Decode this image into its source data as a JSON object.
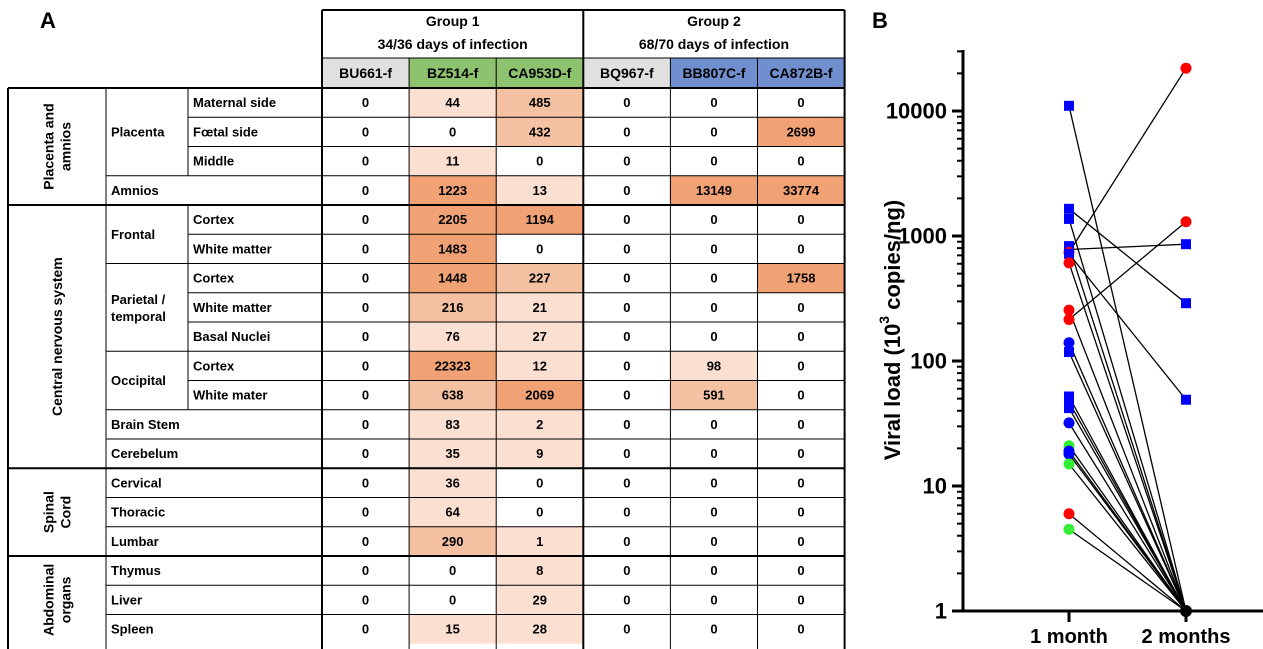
{
  "panel_a_label": "A",
  "panel_b_label": "B",
  "groups": [
    {
      "title": "Group 1",
      "subtitle": "34/36 days of infection"
    },
    {
      "title": "Group 2",
      "subtitle": "68/70 days of infection"
    }
  ],
  "samples": [
    {
      "name": "BU661-f",
      "color": "#e0e0e0"
    },
    {
      "name": "BZ514-f",
      "color": "#8dc26f"
    },
    {
      "name": "CA953D-f",
      "color": "#8dc26f"
    },
    {
      "name": "BQ967-f",
      "color": "#e0e0e0"
    },
    {
      "name": "BB807C-f",
      "color": "#6f8fcf"
    },
    {
      "name": "CA872B-f",
      "color": "#6f8fcf"
    }
  ],
  "heat_colors": {
    "low": "#fbe0d2",
    "mid": "#f5c1a3",
    "high": "#f0a274"
  },
  "sections": [
    {
      "name": "Placenta and amnios",
      "subgroups": [
        {
          "name": "Placenta",
          "rows": [
            {
              "tissue": "Maternal side",
              "values": [
                "0",
                "44",
                "485",
                "0",
                "0",
                "0"
              ]
            },
            {
              "tissue": "Fœtal side",
              "values": [
                "0",
                "0",
                "432",
                "0",
                "0",
                "2699"
              ]
            },
            {
              "tissue": "Middle",
              "values": [
                "0",
                "11",
                "0",
                "0",
                "0",
                "0"
              ]
            }
          ]
        },
        {
          "name": "Amnios",
          "rows": [
            {
              "tissue": "",
              "values": [
                "0",
                "1223",
                "13",
                "0",
                "13149",
                "33774"
              ]
            }
          ]
        }
      ]
    },
    {
      "name": "Central nervous system",
      "subgroups": [
        {
          "name": "Frontal",
          "rows": [
            {
              "tissue": "Cortex",
              "values": [
                "0",
                "2205",
                "1194",
                "0",
                "0",
                "0"
              ]
            },
            {
              "tissue": "White matter",
              "values": [
                "0",
                "1483",
                "0",
                "0",
                "0",
                "0"
              ]
            }
          ]
        },
        {
          "name": "Parietal / temporal",
          "rows": [
            {
              "tissue": "Cortex",
              "values": [
                "0",
                "1448",
                "227",
                "0",
                "0",
                "1758"
              ]
            },
            {
              "tissue": "White matter",
              "values": [
                "0",
                "216",
                "21",
                "0",
                "0",
                "0"
              ]
            },
            {
              "tissue": "Basal Nuclei",
              "values": [
                "0",
                "76",
                "27",
                "0",
                "0",
                "0"
              ]
            }
          ]
        },
        {
          "name": "Occipital",
          "rows": [
            {
              "tissue": "Cortex",
              "values": [
                "0",
                "22323",
                "12",
                "0",
                "98",
                "0"
              ]
            },
            {
              "tissue": "White mater",
              "values": [
                "0",
                "638",
                "2069",
                "0",
                "591",
                "0"
              ]
            }
          ]
        },
        {
          "name": "Brain Stem",
          "rows": [
            {
              "tissue": "",
              "values": [
                "0",
                "83",
                "2",
                "0",
                "0",
                "0"
              ]
            }
          ]
        },
        {
          "name": "Cerebelum",
          "rows": [
            {
              "tissue": "",
              "values": [
                "0",
                "35",
                "9",
                "0",
                "0",
                "0"
              ]
            }
          ]
        }
      ]
    },
    {
      "name": "Spinal Cord",
      "subgroups": [
        {
          "name": "Cervical",
          "rows": [
            {
              "tissue": "",
              "values": [
                "0",
                "36",
                "0",
                "0",
                "0",
                "0"
              ]
            }
          ]
        },
        {
          "name": "Thoracic",
          "rows": [
            {
              "tissue": "",
              "values": [
                "0",
                "64",
                "0",
                "0",
                "0",
                "0"
              ]
            }
          ]
        },
        {
          "name": "Lumbar",
          "rows": [
            {
              "tissue": "",
              "values": [
                "0",
                "290",
                "1",
                "0",
                "0",
                "0"
              ]
            }
          ]
        }
      ]
    },
    {
      "name": "Abdominal organs",
      "subgroups": [
        {
          "name": "Thymus",
          "rows": [
            {
              "tissue": "",
              "values": [
                "0",
                "0",
                "8",
                "0",
                "0",
                "0"
              ]
            }
          ]
        },
        {
          "name": "Liver",
          "rows": [
            {
              "tissue": "",
              "values": [
                "0",
                "0",
                "29",
                "0",
                "0",
                "0"
              ]
            }
          ]
        },
        {
          "name": "Spleen",
          "rows": [
            {
              "tissue": "",
              "values": [
                "0",
                "15",
                "28",
                "0",
                "0",
                "0"
              ]
            }
          ]
        }
      ]
    }
  ],
  "chart_data": {
    "type": "scatter",
    "scale": "log",
    "ylabel": "Viral load (10³ copies/ng)",
    "ylabel_base": "Viral load (10",
    "ylabel_sup": "3",
    "ylabel_tail": " copies/ng)",
    "ylim": [
      1,
      30000
    ],
    "yticks": [
      {
        "value": 1,
        "label": "1"
      },
      {
        "value": 10,
        "label": "10"
      },
      {
        "value": 100,
        "label": "100"
      },
      {
        "value": 1000,
        "label": "1000"
      },
      {
        "value": 10000,
        "label": "10000"
      }
    ],
    "categories": [
      "1 month",
      "2 months"
    ],
    "colors": {
      "red": "#ff0000",
      "blue": "#0000ff",
      "green": "#33ee33"
    },
    "pairs": [
      {
        "v1": 11000,
        "v2": 1,
        "color": "blue",
        "marker": "square"
      },
      {
        "v1": 1650,
        "v2": 290,
        "color": "blue",
        "marker": "square"
      },
      {
        "v1": 1370,
        "v2": 1,
        "color": "blue",
        "marker": "square"
      },
      {
        "v1": 830,
        "v2": 1,
        "color": "blue",
        "marker": "square"
      },
      {
        "v1": 780,
        "v2": 860,
        "color": "blue",
        "marker": "square"
      },
      {
        "v1": 740,
        "v2": 22000,
        "color": "red",
        "marker": "circle"
      },
      {
        "v1": 720,
        "v2": 49,
        "color": "blue",
        "marker": "square"
      },
      {
        "v1": 610,
        "v2": 1,
        "color": "red",
        "marker": "circle"
      },
      {
        "v1": 255,
        "v2": 1,
        "color": "red",
        "marker": "circle"
      },
      {
        "v1": 215,
        "v2": 1300,
        "color": "red",
        "marker": "circle"
      },
      {
        "v1": 140,
        "v2": 1,
        "color": "blue",
        "marker": "circle"
      },
      {
        "v1": 118,
        "v2": 1,
        "color": "blue",
        "marker": "square"
      },
      {
        "v1": 52,
        "v2": 1,
        "color": "blue",
        "marker": "square"
      },
      {
        "v1": 47,
        "v2": 1,
        "color": "blue",
        "marker": "square"
      },
      {
        "v1": 42,
        "v2": 1,
        "color": "blue",
        "marker": "square"
      },
      {
        "v1": 32,
        "v2": 1,
        "color": "blue",
        "marker": "circle"
      },
      {
        "v1": 21,
        "v2": 1,
        "color": "green",
        "marker": "circle"
      },
      {
        "v1": 19,
        "v2": 1,
        "color": "blue",
        "marker": "circle"
      },
      {
        "v1": 18,
        "v2": 1,
        "color": "blue",
        "marker": "circle"
      },
      {
        "v1": 15,
        "v2": 1,
        "color": "green",
        "marker": "circle"
      },
      {
        "v1": 6,
        "v2": 1,
        "color": "red",
        "marker": "circle"
      },
      {
        "v1": 4.5,
        "v2": 1,
        "color": "green",
        "marker": "circle"
      }
    ]
  }
}
